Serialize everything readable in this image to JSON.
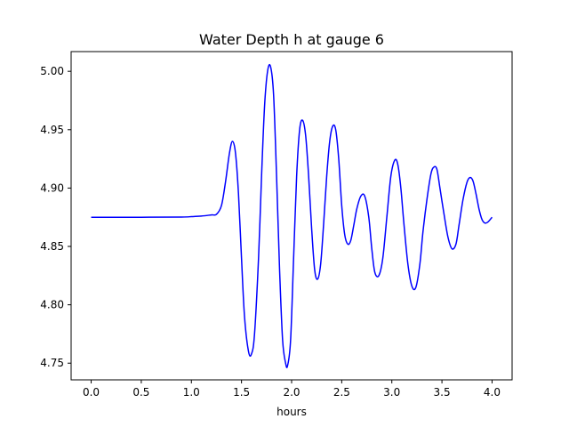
{
  "chart_data": {
    "type": "line",
    "title": "Water Depth h at gauge 6",
    "xlabel": "hours",
    "ylabel": "",
    "xlim": [
      -0.2,
      4.2
    ],
    "ylim": [
      4.7357,
      5.0169
    ],
    "xticks": [
      0.0,
      0.5,
      1.0,
      1.5,
      2.0,
      2.5,
      3.0,
      3.5,
      4.0
    ],
    "xtick_labels": [
      "0.0",
      "0.5",
      "1.0",
      "1.5",
      "2.0",
      "2.5",
      "3.0",
      "3.5",
      "4.0"
    ],
    "yticks": [
      4.75,
      4.8,
      4.85,
      4.9,
      4.95,
      5.0
    ],
    "ytick_labels": [
      "4.75",
      "4.80",
      "4.85",
      "4.90",
      "4.95",
      "5.00"
    ],
    "grid": false,
    "series": [
      {
        "color": "#0000ff",
        "x": [
          0.0,
          0.5,
          0.9,
          1.0,
          1.1,
          1.2,
          1.25,
          1.3,
          1.34,
          1.38,
          1.41,
          1.44,
          1.47,
          1.5,
          1.53,
          1.57,
          1.6,
          1.63,
          1.67,
          1.7,
          1.73,
          1.76,
          1.79,
          1.82,
          1.85,
          1.88,
          1.91,
          1.94,
          1.96,
          1.99,
          2.02,
          2.05,
          2.08,
          2.11,
          2.14,
          2.17,
          2.2,
          2.23,
          2.26,
          2.29,
          2.32,
          2.35,
          2.38,
          2.41,
          2.44,
          2.47,
          2.5,
          2.53,
          2.56,
          2.59,
          2.62,
          2.65,
          2.69,
          2.73,
          2.77,
          2.8,
          2.83,
          2.87,
          2.91,
          2.95,
          2.99,
          3.03,
          3.06,
          3.09,
          3.12,
          3.16,
          3.2,
          3.24,
          3.28,
          3.31,
          3.35,
          3.39,
          3.42,
          3.45,
          3.48,
          3.52,
          3.56,
          3.6,
          3.64,
          3.67,
          3.71,
          3.75,
          3.78,
          3.81,
          3.84,
          3.87,
          3.9,
          3.93,
          3.96,
          4.0
        ],
        "values": [
          4.875,
          4.875,
          4.8752,
          4.8755,
          4.876,
          4.877,
          4.8775,
          4.885,
          4.905,
          4.93,
          4.94,
          4.93,
          4.895,
          4.84,
          4.79,
          4.76,
          4.758,
          4.775,
          4.84,
          4.91,
          4.97,
          5.0,
          5.004,
          4.98,
          4.91,
          4.83,
          4.77,
          4.75,
          4.748,
          4.77,
          4.84,
          4.91,
          4.95,
          4.958,
          4.945,
          4.91,
          4.865,
          4.83,
          4.822,
          4.835,
          4.87,
          4.91,
          4.94,
          4.953,
          4.95,
          4.925,
          4.885,
          4.86,
          4.852,
          4.855,
          4.868,
          4.882,
          4.893,
          4.893,
          4.875,
          4.848,
          4.828,
          4.825,
          4.84,
          4.875,
          4.91,
          4.924,
          4.92,
          4.9,
          4.87,
          4.835,
          4.816,
          4.815,
          4.835,
          4.862,
          4.89,
          4.912,
          4.918,
          4.916,
          4.9,
          4.878,
          4.858,
          4.848,
          4.852,
          4.868,
          4.89,
          4.905,
          4.909,
          4.906,
          4.895,
          4.882,
          4.873,
          4.87,
          4.871,
          4.875
        ]
      }
    ]
  }
}
